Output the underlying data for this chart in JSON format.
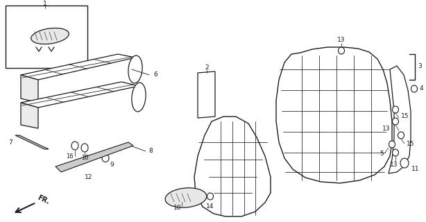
{
  "bg_color": "#ffffff",
  "line_color": "#1a1a1a",
  "fig_width": 6.14,
  "fig_height": 3.2,
  "dpi": 100
}
